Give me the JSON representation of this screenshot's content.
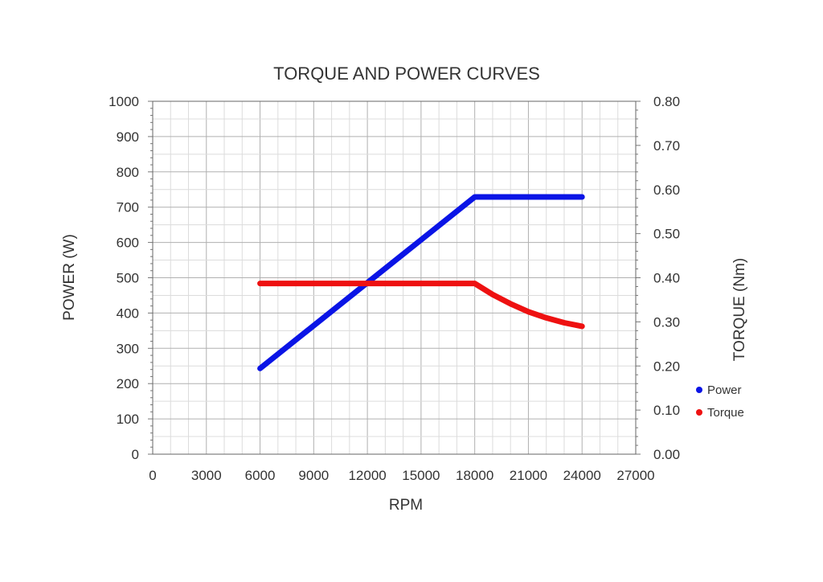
{
  "chart_data": {
    "type": "line",
    "title": "TORQUE AND POWER CURVES",
    "xlabel": "RPM",
    "ylabel_left": "POWER (W)",
    "ylabel_right": "TORQUE (Nm)",
    "xlim": [
      0,
      27000
    ],
    "ylim_left": [
      0,
      1000
    ],
    "ylim_right": [
      0,
      0.8
    ],
    "x_ticks": [
      "0",
      "3000",
      "6000",
      "9000",
      "12000",
      "15000",
      "18000",
      "21000",
      "24000",
      "27000"
    ],
    "y_left_ticks": [
      "0",
      "100",
      "200",
      "300",
      "400",
      "500",
      "600",
      "700",
      "800",
      "900",
      "1000"
    ],
    "y_right_ticks": [
      "0.00",
      "0.10",
      "0.20",
      "0.30",
      "0.40",
      "0.50",
      "0.60",
      "0.70",
      "0.80"
    ],
    "grid": true,
    "legend_position": "right",
    "series": [
      {
        "name": "Power",
        "axis": "left",
        "color": "#0a14e6",
        "x": [
          6000,
          18000,
          24000
        ],
        "y": [
          243,
          729,
          729
        ]
      },
      {
        "name": "Torque",
        "axis": "right",
        "color": "#ee1111",
        "x": [
          6000,
          18000,
          19000,
          20000,
          21000,
          22000,
          23000,
          24000
        ],
        "y": [
          0.387,
          0.387,
          0.362,
          0.341,
          0.323,
          0.309,
          0.298,
          0.29
        ]
      }
    ]
  }
}
